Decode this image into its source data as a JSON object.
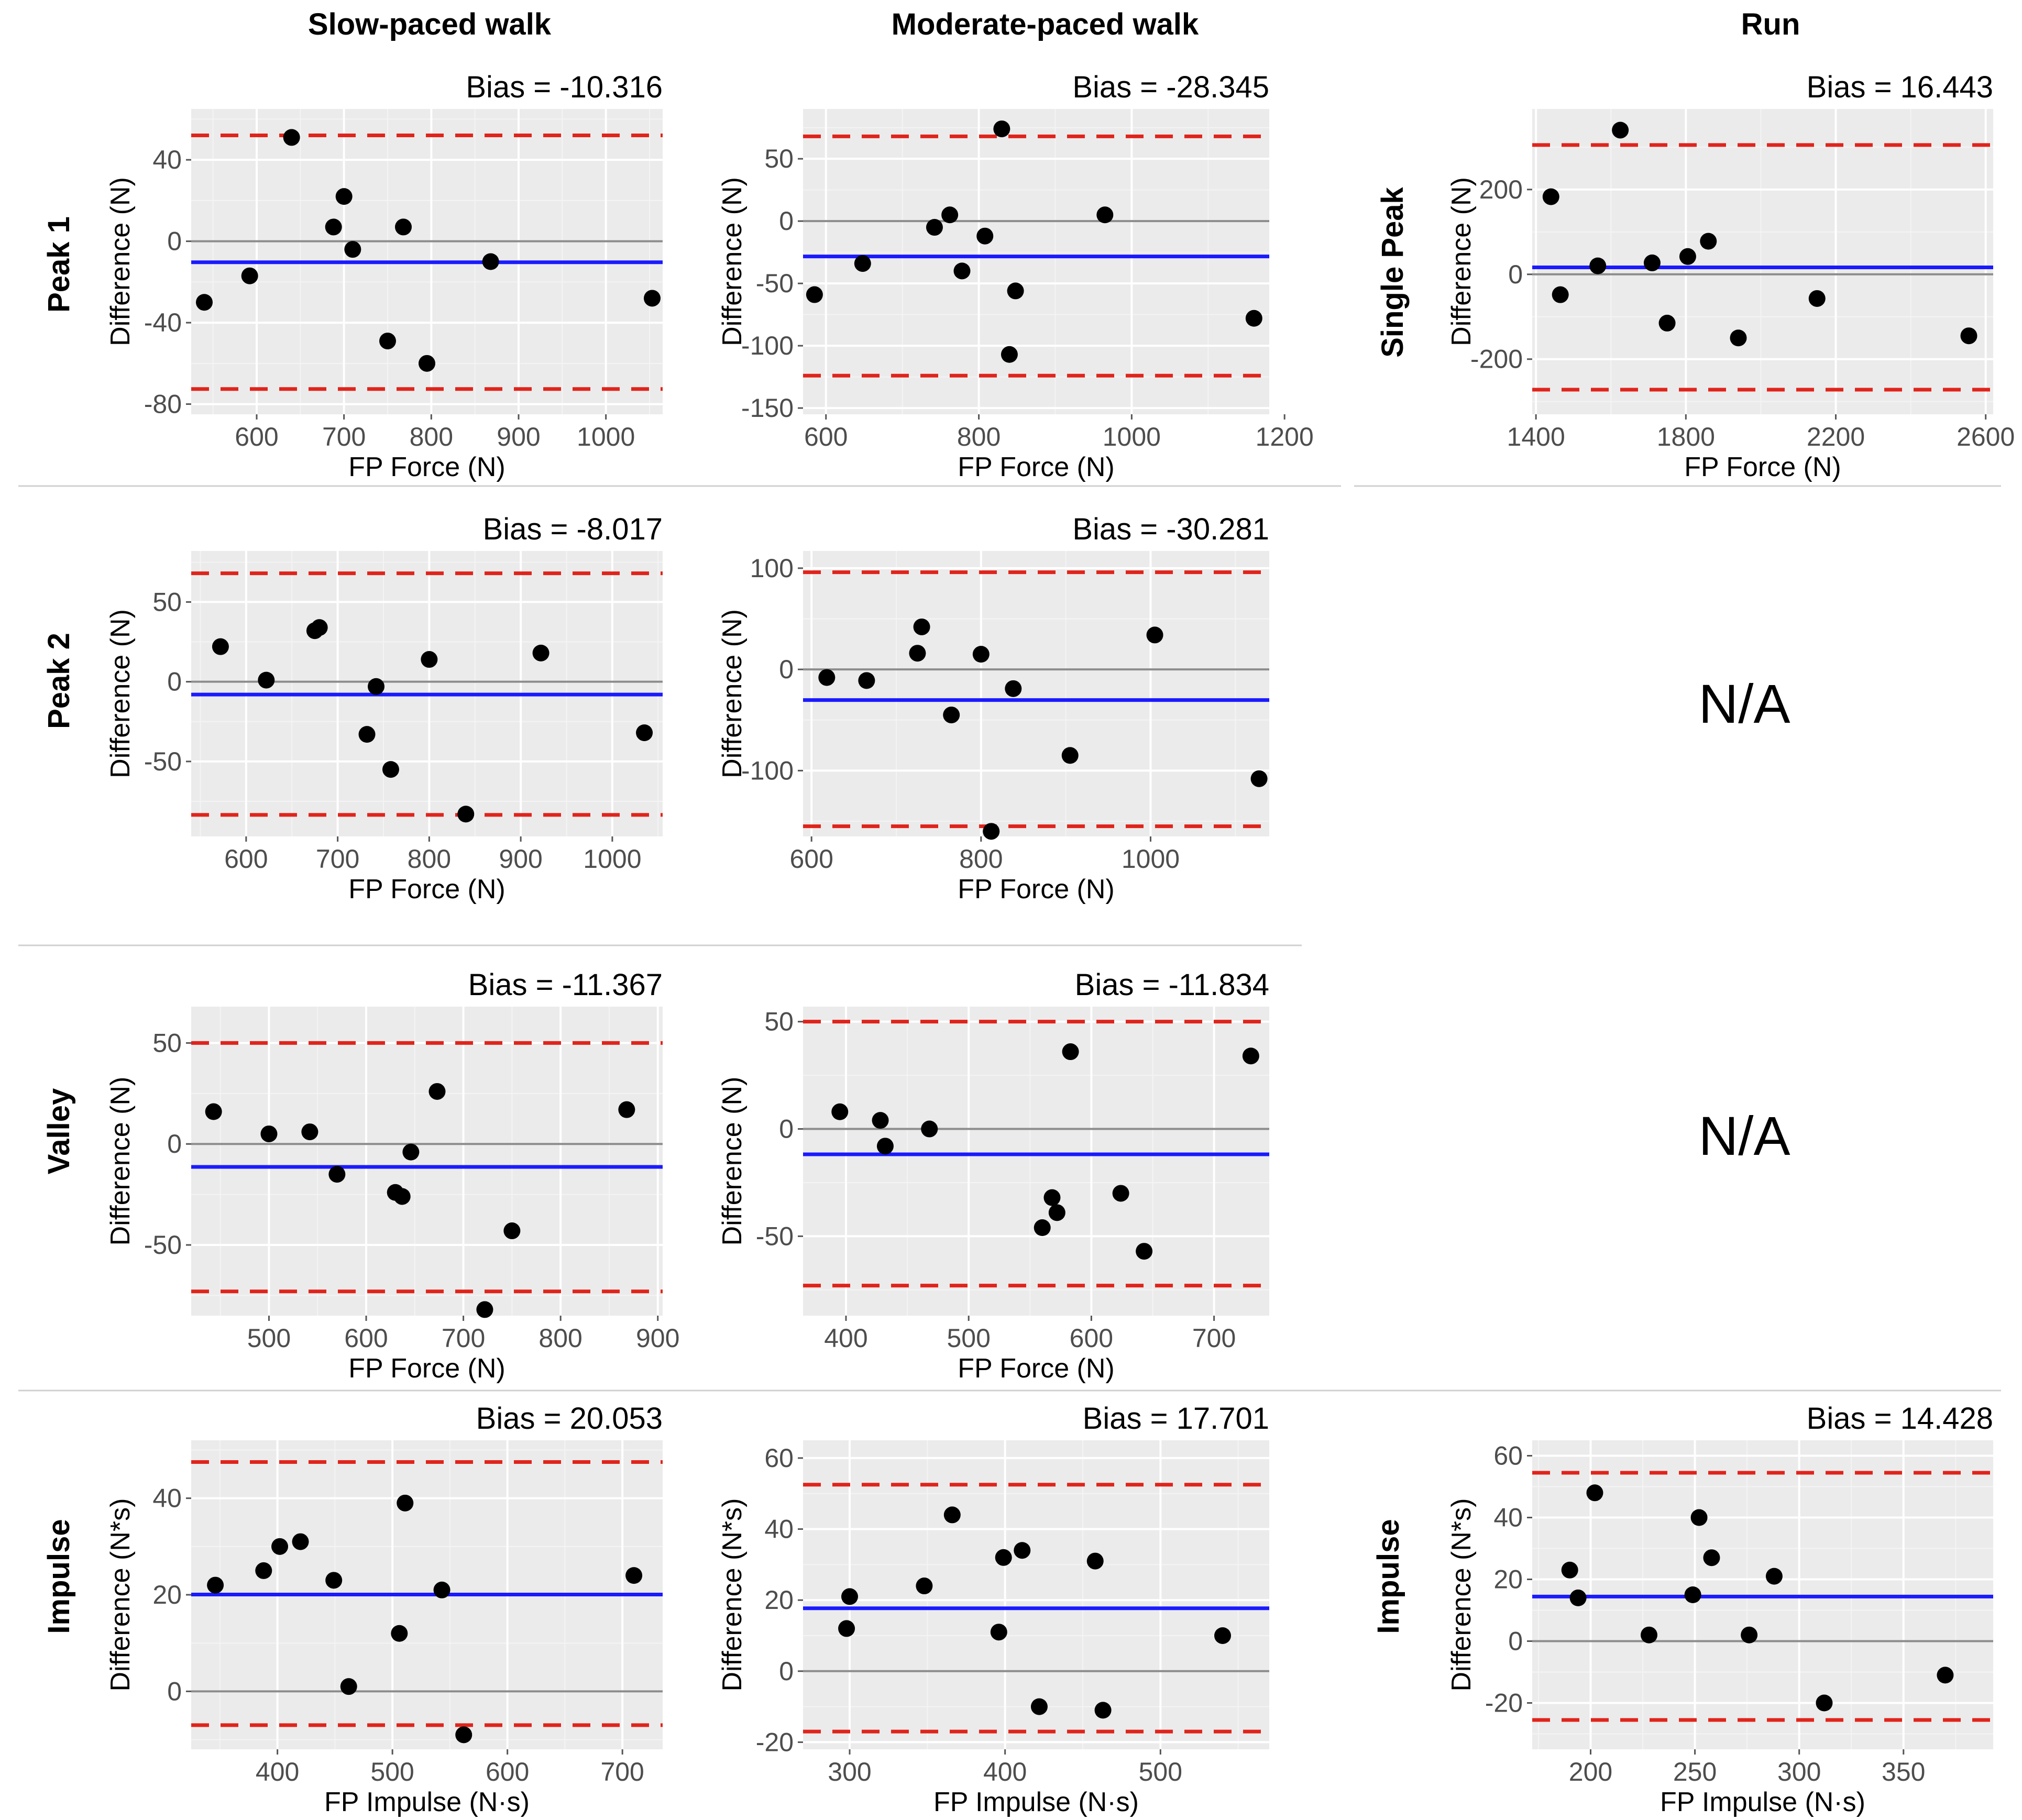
{
  "colors": {
    "panel_bg": "#ebebeb",
    "grid_major": "#ffffff",
    "zero_line": "#8c8c8c",
    "bias_line": "#1a1aff",
    "loa_line": "#e0241b",
    "point": "#000000"
  },
  "columns": [
    "Slow-paced walk",
    "Moderate-paced walk",
    "Run"
  ],
  "rows": [
    "Peak 1",
    "Peak 2",
    "Valley",
    "Impulse"
  ],
  "run_row_labels": [
    "Single Peak",
    "N/A",
    "N/A",
    "Impulse"
  ],
  "na_label": "N/A",
  "chart_data": [
    {
      "id": "slow-peak1",
      "type": "scatter",
      "row": 0,
      "col": 0,
      "title": "Bias = -10.316",
      "bias": -10.316,
      "loa": [
        -72.6,
        52.0
      ],
      "xlabel": "FP Force (N)",
      "ylabel": "Difference (N)",
      "xlim": [
        525,
        1065
      ],
      "ylim": [
        -85,
        65
      ],
      "xticks": [
        600,
        700,
        800,
        900,
        1000
      ],
      "yticks": [
        -80,
        -40,
        0,
        40
      ],
      "xticklabels": [
        "600",
        "700",
        "800",
        "900",
        "1000"
      ],
      "yticklabels": [
        "-80",
        "-40",
        "0",
        "40"
      ],
      "points": [
        [
          540,
          -30
        ],
        [
          592,
          -17
        ],
        [
          640,
          51
        ],
        [
          688,
          7
        ],
        [
          700,
          22
        ],
        [
          710,
          -4
        ],
        [
          750,
          -49
        ],
        [
          768,
          7
        ],
        [
          795,
          -60
        ],
        [
          868,
          -10
        ],
        [
          1053,
          -28
        ]
      ]
    },
    {
      "id": "moderate-peak1",
      "type": "scatter",
      "row": 0,
      "col": 1,
      "title": "Bias = -28.345",
      "bias": -28.345,
      "loa": [
        -124,
        68
      ],
      "xlabel": "FP Force (N)",
      "ylabel": "Difference (N)",
      "xlim": [
        570,
        1180
      ],
      "ylim": [
        -155,
        90
      ],
      "xticks": [
        600,
        800,
        1000,
        1200
      ],
      "yticks": [
        -150,
        -100,
        -50,
        0,
        50
      ],
      "xticklabels": [
        "600",
        "800",
        "1000",
        "1200"
      ],
      "yticklabels": [
        "-150",
        "-100",
        "-50",
        "0",
        "50"
      ],
      "points": [
        [
          585,
          -59
        ],
        [
          648,
          -34
        ],
        [
          742,
          -5
        ],
        [
          762,
          5
        ],
        [
          778,
          -40
        ],
        [
          808,
          -12
        ],
        [
          830,
          74
        ],
        [
          840,
          -107
        ],
        [
          848,
          -56
        ],
        [
          965,
          5
        ],
        [
          1160,
          -78
        ]
      ]
    },
    {
      "id": "run-singlepeak",
      "type": "scatter",
      "row": 0,
      "col": 2,
      "title": "Bias = 16.443",
      "bias": 16.443,
      "loa": [
        -272,
        305
      ],
      "xlabel": "FP Force (N)",
      "ylabel": "Difference (N)",
      "xlim": [
        1390,
        2620
      ],
      "ylim": [
        -330,
        390
      ],
      "xticks": [
        1400,
        1800,
        2200,
        2600
      ],
      "yticks": [
        -200,
        0,
        200
      ],
      "xticklabels": [
        "1400",
        "1800",
        "2200",
        "2600"
      ],
      "yticklabels": [
        "-200",
        "0",
        "200"
      ],
      "points": [
        [
          1440,
          183
        ],
        [
          1465,
          -48
        ],
        [
          1565,
          20
        ],
        [
          1625,
          340
        ],
        [
          1710,
          27
        ],
        [
          1750,
          -115
        ],
        [
          1805,
          42
        ],
        [
          1860,
          78
        ],
        [
          1940,
          -150
        ],
        [
          2150,
          -57
        ],
        [
          2555,
          -145
        ]
      ]
    },
    {
      "id": "slow-peak2",
      "type": "scatter",
      "row": 1,
      "col": 0,
      "title": "Bias = -8.017",
      "bias": -8.017,
      "loa": [
        -83.5,
        68
      ],
      "xlabel": "FP Force (N)",
      "ylabel": "Difference (N)",
      "xlim": [
        540,
        1055
      ],
      "ylim": [
        -97,
        82
      ],
      "xticks": [
        600,
        700,
        800,
        900,
        1000
      ],
      "yticks": [
        -50,
        0,
        50
      ],
      "xticklabels": [
        "600",
        "700",
        "800",
        "900",
        "1000"
      ],
      "yticklabels": [
        "-50",
        "0",
        "50"
      ],
      "points": [
        [
          572,
          22
        ],
        [
          622,
          1
        ],
        [
          675,
          32
        ],
        [
          680,
          34
        ],
        [
          742,
          -3
        ],
        [
          732,
          -33
        ],
        [
          758,
          -55
        ],
        [
          800,
          14
        ],
        [
          840,
          -83
        ],
        [
          922,
          18
        ],
        [
          1035,
          -32
        ]
      ]
    },
    {
      "id": "moderate-peak2",
      "type": "scatter",
      "row": 1,
      "col": 1,
      "title": "Bias = -30.281",
      "bias": -30.281,
      "loa": [
        -155,
        96
      ],
      "xlabel": "FP Force (N)",
      "ylabel": "Difference (N)",
      "xlim": [
        590,
        1140
      ],
      "ylim": [
        -165,
        117
      ],
      "xticks": [
        600,
        800,
        1000
      ],
      "yticks": [
        -100,
        0,
        100
      ],
      "xticklabels": [
        "600",
        "800",
        "1000"
      ],
      "yticklabels": [
        "-100",
        "0",
        "100"
      ],
      "points": [
        [
          618,
          -8
        ],
        [
          665,
          -11
        ],
        [
          725,
          16
        ],
        [
          730,
          42
        ],
        [
          765,
          -45
        ],
        [
          800,
          15
        ],
        [
          812,
          -160
        ],
        [
          838,
          -19
        ],
        [
          905,
          -85
        ],
        [
          1005,
          34
        ],
        [
          1128,
          -108
        ]
      ]
    },
    {
      "id": "slow-valley",
      "type": "scatter",
      "row": 2,
      "col": 0,
      "title": "Bias = -11.367",
      "bias": -11.367,
      "loa": [
        -73,
        50
      ],
      "xlabel": "FP Force (N)",
      "ylabel": "Difference (N)",
      "xlim": [
        420,
        905
      ],
      "ylim": [
        -85,
        68
      ],
      "xticks": [
        500,
        600,
        700,
        800,
        900
      ],
      "yticks": [
        -50,
        0,
        50
      ],
      "xticklabels": [
        "500",
        "600",
        "700",
        "800",
        "900"
      ],
      "yticklabels": [
        "-50",
        "0",
        "50"
      ],
      "points": [
        [
          443,
          16
        ],
        [
          500,
          5
        ],
        [
          542,
          6
        ],
        [
          570,
          -15
        ],
        [
          630,
          -24
        ],
        [
          637,
          -26
        ],
        [
          646,
          -4
        ],
        [
          673,
          26
        ],
        [
          722,
          -82
        ],
        [
          750,
          -43
        ],
        [
          868,
          17
        ]
      ]
    },
    {
      "id": "moderate-valley",
      "type": "scatter",
      "row": 2,
      "col": 1,
      "title": "Bias = -11.834",
      "bias": -11.834,
      "loa": [
        -73,
        50
      ],
      "xlabel": "FP Force (N)",
      "ylabel": "Difference (N)",
      "xlim": [
        365,
        745
      ],
      "ylim": [
        -87,
        57
      ],
      "xticks": [
        400,
        500,
        600,
        700
      ],
      "yticks": [
        -50,
        0,
        50
      ],
      "xticklabels": [
        "400",
        "500",
        "600",
        "700"
      ],
      "yticklabels": [
        "-50",
        "0",
        "50"
      ],
      "points": [
        [
          395,
          8
        ],
        [
          428,
          4
        ],
        [
          432,
          -8
        ],
        [
          468,
          0
        ],
        [
          560,
          -46
        ],
        [
          568,
          -32
        ],
        [
          572,
          -39
        ],
        [
          583,
          36
        ],
        [
          624,
          -30
        ],
        [
          643,
          -57
        ],
        [
          730,
          34
        ]
      ]
    },
    {
      "id": "slow-impulse",
      "type": "scatter",
      "row": 3,
      "col": 0,
      "title": "Bias = 20.053",
      "bias": 20.053,
      "loa": [
        -7,
        47.5
      ],
      "xlabel": "FP Impulse (N·s)",
      "ylabel": "Difference (N*s)",
      "xlim": [
        325,
        735
      ],
      "ylim": [
        -12,
        52
      ],
      "xticks": [
        400,
        500,
        600,
        700
      ],
      "yticks": [
        0,
        20,
        40
      ],
      "xticklabels": [
        "400",
        "500",
        "600",
        "700"
      ],
      "yticklabels": [
        "0",
        "20",
        "40"
      ],
      "points": [
        [
          346,
          22
        ],
        [
          388,
          25
        ],
        [
          402,
          30
        ],
        [
          420,
          31
        ],
        [
          449,
          23
        ],
        [
          462,
          1
        ],
        [
          506,
          12
        ],
        [
          511,
          39
        ],
        [
          543,
          21
        ],
        [
          562,
          -9
        ],
        [
          710,
          24
        ]
      ]
    },
    {
      "id": "moderate-impulse",
      "type": "scatter",
      "row": 3,
      "col": 1,
      "title": "Bias = 17.701",
      "bias": 17.701,
      "loa": [
        -17,
        52.5
      ],
      "xlabel": "FP Impulse (N·s)",
      "ylabel": "Difference (N*s)",
      "xlim": [
        270,
        570
      ],
      "ylim": [
        -22,
        65
      ],
      "xticks": [
        300,
        400,
        500
      ],
      "yticks": [
        -20,
        0,
        20,
        40,
        60
      ],
      "xticklabels": [
        "300",
        "400",
        "500"
      ],
      "yticklabels": [
        "-20",
        "0",
        "20",
        "40",
        "60"
      ],
      "points": [
        [
          298,
          12
        ],
        [
          300,
          21
        ],
        [
          348,
          24
        ],
        [
          366,
          44
        ],
        [
          396,
          11
        ],
        [
          399,
          32
        ],
        [
          411,
          34
        ],
        [
          422,
          -10
        ],
        [
          458,
          31
        ],
        [
          463,
          -11
        ],
        [
          540,
          10
        ]
      ]
    },
    {
      "id": "run-impulse",
      "type": "scatter",
      "row": 3,
      "col": 2,
      "title": "Bias = 14.428",
      "bias": 14.428,
      "loa": [
        -25.5,
        54.5
      ],
      "xlabel": "FP Impulse (N·s)",
      "ylabel": "Difference (N*s)",
      "xlim": [
        172,
        393
      ],
      "ylim": [
        -35,
        65
      ],
      "xticks": [
        200,
        250,
        300,
        350
      ],
      "yticks": [
        -20,
        0,
        20,
        40,
        60
      ],
      "xticklabels": [
        "200",
        "250",
        "300",
        "350"
      ],
      "yticklabels": [
        "-20",
        "0",
        "20",
        "40",
        "60"
      ],
      "points": [
        [
          190,
          23
        ],
        [
          194,
          14
        ],
        [
          202,
          48
        ],
        [
          228,
          2
        ],
        [
          249,
          15
        ],
        [
          252,
          40
        ],
        [
          258,
          27
        ],
        [
          276,
          2
        ],
        [
          288,
          21
        ],
        [
          312,
          -20
        ],
        [
          370,
          -11
        ]
      ]
    }
  ]
}
